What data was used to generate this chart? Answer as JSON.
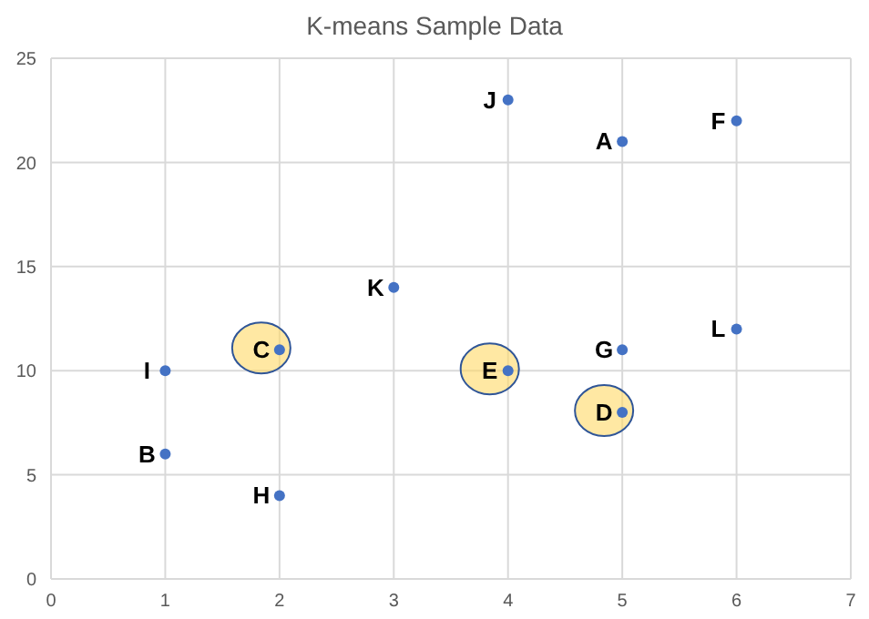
{
  "chart_data": {
    "type": "scatter",
    "title": "K-means Sample Data",
    "series": [
      {
        "color": "#4472c4",
        "x": [
          5,
          1,
          6,
          5,
          2,
          1,
          4,
          3,
          6
        ],
        "values": [
          21,
          6,
          22,
          11,
          4,
          10,
          23,
          14,
          12
        ]
      },
      {
        "color": "#4472c4",
        "x": [
          2,
          5,
          4
        ],
        "values": [
          11,
          8,
          10
        ]
      }
    ],
    "annotations": [
      {
        "text": "A",
        "x": 5,
        "y": 21
      },
      {
        "text": "B",
        "x": 1,
        "y": 6
      },
      {
        "text": "C",
        "x": 2,
        "y": 11
      },
      {
        "text": "D",
        "x": 5,
        "y": 8
      },
      {
        "text": "E",
        "x": 4,
        "y": 10
      },
      {
        "text": "F",
        "x": 6,
        "y": 22
      },
      {
        "text": "G",
        "x": 5,
        "y": 11
      },
      {
        "text": "H",
        "x": 2,
        "y": 4
      },
      {
        "text": "I",
        "x": 1,
        "y": 10
      },
      {
        "text": "J",
        "x": 4,
        "y": 23
      },
      {
        "text": "K",
        "x": 3,
        "y": 14
      },
      {
        "text": "L",
        "x": 6,
        "y": 12
      }
    ],
    "xlim": [
      0,
      7
    ],
    "xticks": [
      0,
      1,
      2,
      3,
      4,
      5,
      6,
      7
    ],
    "ylim": [
      0,
      25
    ],
    "yticks": [
      0,
      5,
      10,
      15,
      20,
      25
    ],
    "grid": true,
    "marker": "circle",
    "legend": false
  }
}
